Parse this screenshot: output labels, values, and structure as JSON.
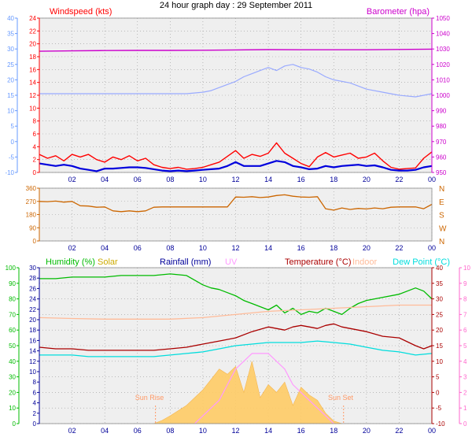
{
  "title": "24 hour graph day : 29 September 2011",
  "colors": {
    "windspeed": "#ff0000",
    "windspeed_avg": "#0000dd",
    "barometer": "#cc00cc",
    "temperature_scale": "#6699ff",
    "temperature_series": "#99aaff",
    "direction": "#cc6600",
    "humidity": "#00bb00",
    "solar": "#ffcc66",
    "solar_label": "#ccaa00",
    "rainfall": "#000099",
    "uv": "#ff99ff",
    "temperature": "#aa0000",
    "indoor": "#ffbb99",
    "dewpoint": "#00dddd",
    "sun_marker": "#ff9966",
    "plot_bg": "#efefef",
    "grid": "#999999"
  },
  "chart_data": [
    {
      "type": "line",
      "panel": "wind-barometer",
      "legend": {
        "left": "Windspeed (kts)",
        "right": "Barometer (hpa)"
      },
      "x_ticks": [
        "02",
        "04",
        "06",
        "08",
        "10",
        "12",
        "14",
        "16",
        "18",
        "20",
        "22",
        "00"
      ],
      "y_left_outer": {
        "ticks": [
          -10,
          -5,
          0,
          5,
          10,
          15,
          20,
          25,
          30,
          35,
          40
        ],
        "range": [
          -10,
          40
        ]
      },
      "y_left": {
        "ticks": [
          0,
          2,
          4,
          6,
          8,
          10,
          12,
          14,
          16,
          18,
          20,
          22,
          24
        ],
        "range": [
          0,
          24
        ]
      },
      "y_right": {
        "ticks": [
          950,
          960,
          970,
          980,
          990,
          1000,
          1010,
          1020,
          1030,
          1040,
          1050
        ],
        "range": [
          950,
          1050
        ]
      },
      "x_range": [
        0,
        24
      ],
      "series": [
        {
          "role": "barometer",
          "axis": "right",
          "x": [
            0,
            2,
            4,
            6,
            8,
            10,
            12,
            14,
            16,
            18,
            20,
            22,
            24
          ],
          "y": [
            1028.5,
            1028.8,
            1029.0,
            1029.1,
            1029.1,
            1029.2,
            1029.4,
            1029.6,
            1029.5,
            1029.5,
            1029.5,
            1029.7,
            1029.9
          ]
        },
        {
          "role": "temperature",
          "axis": "left_outer",
          "x": [
            0,
            1,
            2,
            3,
            4,
            5,
            6,
            7,
            8,
            9,
            10,
            10.5,
            11,
            11.5,
            12,
            12.5,
            13,
            13.5,
            14,
            14.5,
            15,
            15.5,
            16,
            16.5,
            17,
            17.5,
            18,
            19,
            20,
            21,
            22,
            23,
            24
          ],
          "y": [
            15.5,
            15.5,
            15.5,
            15.5,
            15.5,
            15.5,
            15.5,
            15.5,
            15.5,
            15.5,
            16.0,
            16.5,
            17.5,
            18.5,
            19.5,
            21.0,
            22.0,
            23.0,
            24.0,
            23.0,
            24.5,
            25.0,
            24.0,
            23.5,
            22.5,
            21.0,
            20.0,
            19.0,
            17.0,
            16.0,
            15.0,
            14.5,
            15.5
          ]
        },
        {
          "role": "windspeed",
          "axis": "left",
          "x": [
            0,
            0.5,
            1,
            1.5,
            2,
            2.5,
            3,
            3.5,
            4,
            4.5,
            5,
            5.5,
            6,
            6.5,
            7,
            7.5,
            8,
            8.5,
            9,
            9.5,
            10,
            10.5,
            11,
            11.5,
            12,
            12.5,
            13,
            13.5,
            14,
            14.5,
            15,
            15.5,
            16,
            16.5,
            17,
            17.5,
            18,
            18.5,
            19,
            19.5,
            20,
            20.5,
            21,
            21.5,
            22,
            22.5,
            23,
            23.5,
            24
          ],
          "y": [
            2.8,
            2.2,
            2.6,
            1.8,
            2.8,
            2.4,
            2.8,
            2.0,
            1.6,
            2.4,
            2.0,
            2.6,
            1.8,
            2.2,
            1.2,
            0.8,
            0.6,
            0.8,
            0.5,
            0.6,
            0.8,
            1.2,
            1.6,
            2.5,
            3.4,
            2.2,
            2.8,
            2.5,
            3.0,
            4.6,
            3.0,
            2.2,
            1.4,
            0.9,
            2.4,
            3.1,
            2.4,
            2.7,
            3.0,
            2.2,
            2.4,
            3.0,
            1.8,
            0.8,
            0.5,
            0.6,
            0.7,
            2.2,
            3.2
          ]
        },
        {
          "role": "windspeed_avg",
          "axis": "left",
          "x": [
            0,
            0.5,
            1,
            1.5,
            2,
            2.5,
            3,
            3.5,
            4,
            4.5,
            5,
            5.5,
            6,
            6.5,
            7,
            7.5,
            8,
            8.5,
            9,
            9.5,
            10,
            10.5,
            11,
            11.5,
            12,
            12.5,
            13,
            13.5,
            14,
            14.5,
            15,
            15.5,
            16,
            16.5,
            17,
            17.5,
            18,
            18.5,
            19,
            19.5,
            20,
            20.5,
            21,
            21.5,
            22,
            22.5,
            23,
            23.5,
            24
          ],
          "y": [
            1.4,
            1.2,
            1.0,
            1.2,
            1.0,
            0.6,
            0.4,
            0.2,
            0.6,
            0.6,
            0.7,
            0.8,
            0.8,
            0.7,
            0.5,
            0.3,
            0.2,
            0.3,
            0.2,
            0.3,
            0.4,
            0.5,
            0.6,
            1.0,
            1.6,
            1.0,
            1.0,
            1.0,
            1.4,
            1.8,
            1.6,
            1.0,
            0.8,
            0.5,
            0.6,
            1.0,
            0.8,
            1.0,
            1.1,
            1.2,
            1.0,
            1.1,
            0.8,
            0.4,
            0.3,
            0.3,
            0.4,
            0.8,
            1.0
          ]
        }
      ]
    },
    {
      "type": "line",
      "panel": "wind-direction",
      "x_ticks": [
        "02",
        "04",
        "06",
        "08",
        "10",
        "12",
        "14",
        "16",
        "18",
        "20",
        "22",
        "00"
      ],
      "y_left": {
        "ticks": [
          0,
          90,
          180,
          270,
          360
        ],
        "range": [
          0,
          360
        ]
      },
      "y_right_labels": [
        "N",
        "W",
        "S",
        "E",
        "N"
      ],
      "x_range": [
        0,
        24
      ],
      "series": [
        {
          "role": "direction",
          "x": [
            0,
            0.5,
            1,
            1.5,
            2,
            2.5,
            3,
            3.5,
            4,
            4.5,
            5,
            5.5,
            6,
            6.5,
            7,
            7.5,
            8,
            8.5,
            9,
            9.5,
            10,
            10.5,
            11,
            11.5,
            12,
            12.5,
            13,
            13.5,
            14,
            14.5,
            15,
            15.5,
            16,
            16.5,
            17,
            17.5,
            18,
            18.5,
            19,
            19.5,
            20,
            20.5,
            21,
            21.5,
            22,
            22.5,
            23,
            23.5,
            24
          ],
          "y": [
            270,
            268,
            272,
            265,
            270,
            240,
            238,
            230,
            232,
            205,
            200,
            205,
            200,
            205,
            230,
            232,
            232,
            232,
            232,
            232,
            232,
            232,
            232,
            232,
            300,
            298,
            302,
            296,
            300,
            310,
            315,
            305,
            300,
            298,
            302,
            220,
            210,
            225,
            215,
            222,
            218,
            225,
            220,
            230,
            232,
            232,
            232,
            220,
            250
          ]
        }
      ]
    },
    {
      "type": "line",
      "panel": "environment",
      "legend": [
        "Humidity (%)",
        "Solar",
        "Rainfall (mm)",
        "UV",
        "Temperature (°C)",
        "Indoor",
        "Dew Point (°C)"
      ],
      "annotations": [
        "Sun Rise",
        "Sun Set"
      ],
      "sunrise_x": 7.1,
      "sunset_x": 18.6,
      "x_ticks": [
        "02",
        "04",
        "06",
        "08",
        "10",
        "12",
        "14",
        "16",
        "18",
        "20",
        "22",
        "00"
      ],
      "y_left_outer": {
        "ticks": [
          0,
          10,
          20,
          30,
          40,
          50,
          60,
          70,
          80,
          90,
          100
        ],
        "range": [
          0,
          100
        ]
      },
      "y_left": {
        "ticks": [
          0,
          2,
          4,
          6,
          8,
          10,
          12,
          14,
          16,
          18,
          20,
          22,
          24,
          26,
          28,
          30
        ],
        "range": [
          0,
          30
        ]
      },
      "y_right": {
        "ticks": [
          -10,
          -5,
          0,
          5,
          10,
          15,
          20,
          25,
          30,
          35,
          40
        ],
        "range": [
          -10,
          40
        ]
      },
      "y_right_outer": {
        "ticks": [
          0,
          1,
          2,
          3,
          4,
          5,
          6,
          7,
          8,
          9,
          10
        ],
        "range": [
          0,
          10
        ]
      },
      "x_range": [
        0,
        24
      ],
      "series": [
        {
          "role": "humidity",
          "axis": "left_outer",
          "x": [
            0,
            1,
            2,
            3,
            4,
            5,
            6,
            7,
            8,
            9,
            10,
            10.5,
            11,
            11.5,
            12,
            12.5,
            13,
            13.5,
            14,
            14.5,
            15,
            15.5,
            16,
            16.5,
            17,
            17.5,
            18,
            18.5,
            19,
            19.5,
            20,
            20.5,
            21,
            22,
            23,
            23.5,
            24
          ],
          "y": [
            93,
            93,
            94,
            94,
            94,
            95,
            95,
            95,
            96,
            95,
            89,
            87,
            86,
            84,
            82,
            79,
            77,
            75,
            73,
            76,
            71,
            74,
            70,
            72,
            71,
            74,
            72,
            70,
            74,
            77,
            79,
            80,
            81,
            83,
            87,
            85,
            80
          ]
        },
        {
          "role": "indoor",
          "axis": "right",
          "x": [
            0,
            2,
            4,
            6,
            8,
            10,
            12,
            14,
            16,
            18,
            20,
            22,
            24
          ],
          "y": [
            24.0,
            23.7,
            23.5,
            23.5,
            23.5,
            24.0,
            25.0,
            26.0,
            26.5,
            27.0,
            27.5,
            28.0,
            28.0
          ]
        },
        {
          "role": "temperature",
          "axis": "right",
          "x": [
            0,
            1,
            2,
            3,
            4,
            5,
            6,
            7,
            8,
            9,
            10,
            11,
            12,
            13,
            14,
            14.5,
            15,
            15.5,
            16,
            16.5,
            17,
            17.5,
            18,
            18.5,
            19,
            20,
            21,
            22,
            23,
            23.5,
            24
          ],
          "y": [
            14.5,
            14.0,
            14.0,
            13.5,
            13.5,
            13.5,
            13.5,
            13.5,
            14.0,
            14.5,
            15.5,
            16.5,
            17.5,
            19.5,
            21.0,
            20.5,
            20.0,
            21.0,
            21.5,
            21.0,
            20.5,
            21.5,
            22.0,
            21.0,
            20.5,
            19.5,
            18.0,
            17.5,
            15.0,
            14.0,
            15.0
          ]
        },
        {
          "role": "dewpoint",
          "axis": "right",
          "x": [
            0,
            1,
            2,
            3,
            4,
            5,
            6,
            7,
            8,
            9,
            10,
            11,
            12,
            13,
            14,
            15,
            16,
            17,
            18,
            19,
            20,
            21,
            22,
            23,
            24
          ],
          "y": [
            12.0,
            12.0,
            12.0,
            11.5,
            11.5,
            11.5,
            11.5,
            11.5,
            12.0,
            12.5,
            13.0,
            14.0,
            15.0,
            15.5,
            16.0,
            16.0,
            16.0,
            16.5,
            16.0,
            15.5,
            14.5,
            13.5,
            13.0,
            12.0,
            12.5
          ]
        },
        {
          "role": "solar",
          "axis": "left",
          "kind": "area",
          "x": [
            7.0,
            7.5,
            8,
            8.5,
            9,
            9.5,
            10,
            10.5,
            11,
            11.5,
            12,
            12.5,
            13,
            13.5,
            14,
            14.5,
            15,
            15.5,
            16,
            16.5,
            17,
            17.5,
            18,
            18.5
          ],
          "y": [
            0.0,
            0.6,
            1.5,
            2.5,
            3.5,
            5.0,
            6.5,
            8.5,
            10.5,
            9.5,
            11.0,
            6.0,
            12.0,
            5.0,
            7.5,
            6.0,
            8.0,
            3.5,
            7.0,
            5.5,
            4.5,
            2.0,
            0.5,
            0.0
          ]
        },
        {
          "role": "uv",
          "axis": "right_outer",
          "x": [
            9.5,
            10,
            10.5,
            11,
            11.5,
            12,
            12.5,
            13,
            13.5,
            14,
            14.5,
            15,
            15.5,
            16,
            16.5,
            17,
            17.5,
            18
          ],
          "y": [
            0.0,
            0.5,
            1.0,
            1.5,
            2.5,
            3.5,
            4.0,
            4.5,
            4.5,
            4.5,
            4.0,
            3.5,
            2.5,
            2.0,
            1.5,
            1.0,
            0.5,
            0.0
          ]
        }
      ]
    }
  ]
}
